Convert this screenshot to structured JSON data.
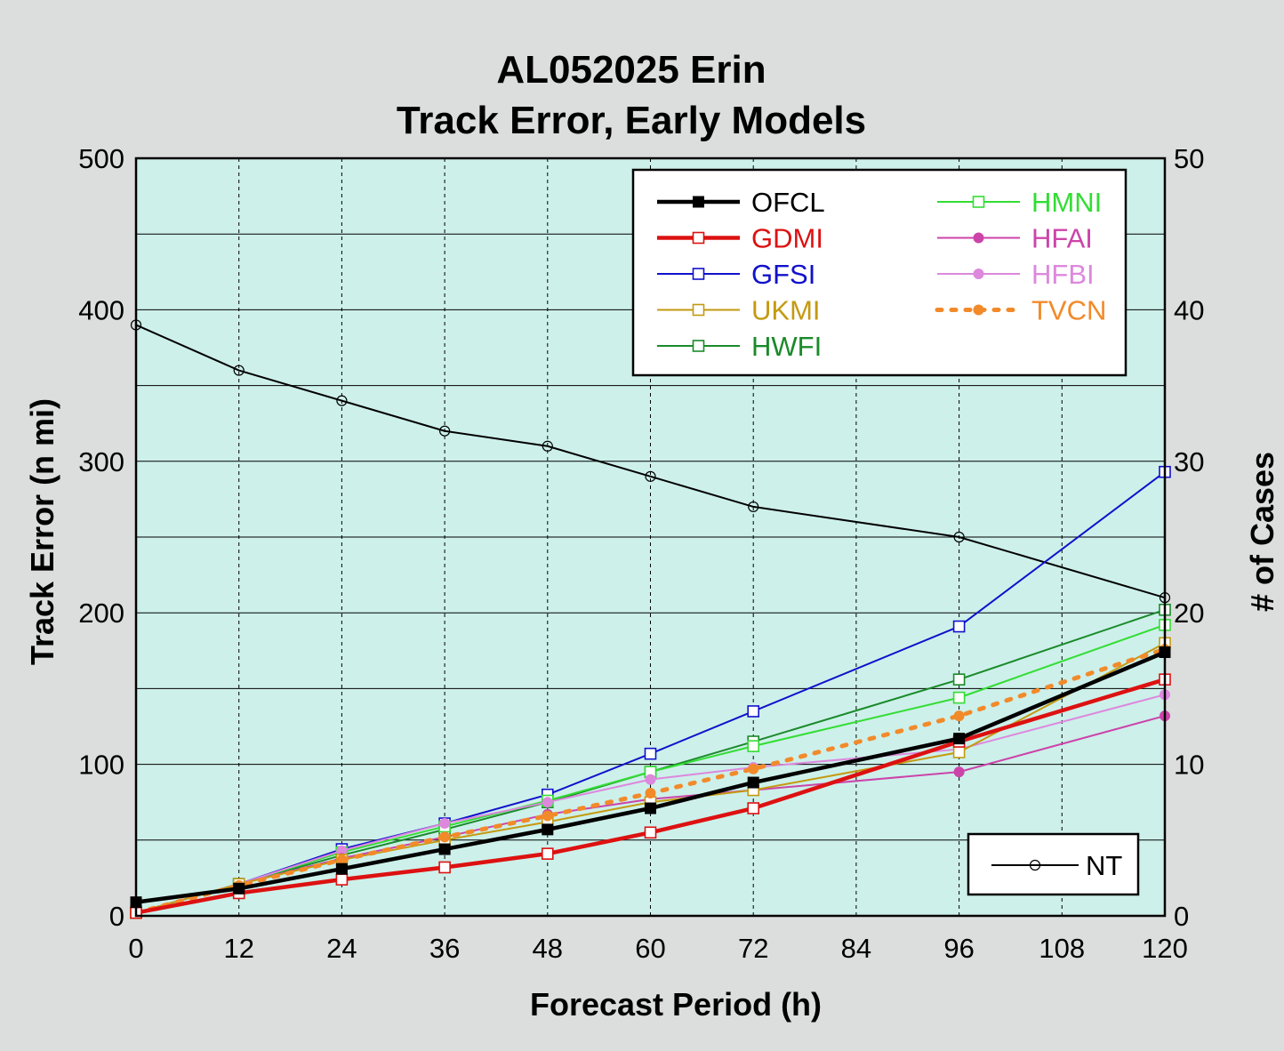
{
  "chart_data": {
    "type": "line",
    "title_line1": "AL052025 Erin",
    "title_line2": "Track Error, Early Models",
    "xlabel": "Forecast Period (h)",
    "ylabel": "Track Error (n mi)",
    "y2label": "# of Cases",
    "xlim": [
      0,
      120
    ],
    "ylim": [
      0,
      500
    ],
    "y2lim": [
      0,
      50
    ],
    "xticks": [
      "0",
      "12",
      "24",
      "36",
      "48",
      "60",
      "72",
      "84",
      "96",
      "108",
      "120"
    ],
    "yticks": [
      "0",
      "100",
      "200",
      "300",
      "400",
      "500"
    ],
    "y2ticks": [
      "0",
      "10",
      "20",
      "30",
      "40",
      "50"
    ],
    "grid": true,
    "legend_position": "top-right",
    "x": [
      0,
      12,
      24,
      36,
      48,
      60,
      72,
      96,
      120
    ],
    "series": [
      {
        "name": "OFCL",
        "color": "#000000",
        "marker": "filled-square",
        "style": "solid-thick",
        "values": [
          9,
          18,
          31,
          44,
          57,
          71,
          88,
          117,
          174
        ]
      },
      {
        "name": "GDMI",
        "color": "#dd1111",
        "marker": "open-square",
        "style": "solid-thick",
        "values": [
          2,
          15,
          24,
          32,
          41,
          55,
          71,
          115,
          156
        ]
      },
      {
        "name": "GFSI",
        "color": "#1111cc",
        "marker": "open-square",
        "style": "solid",
        "values": [
          2,
          21,
          44,
          61,
          80,
          107,
          135,
          191,
          293
        ]
      },
      {
        "name": "UKMI",
        "color": "#c49a10",
        "marker": "open-square",
        "style": "solid",
        "values": [
          2,
          21,
          37,
          50,
          62,
          75,
          83,
          108,
          180
        ]
      },
      {
        "name": "HWFI",
        "color": "#1a8a2a",
        "marker": "open-square",
        "style": "solid",
        "values": [
          2,
          21,
          40,
          57,
          75,
          95,
          115,
          156,
          202
        ]
      },
      {
        "name": "HMNI",
        "color": "#33dd33",
        "marker": "open-square",
        "style": "solid",
        "values": [
          2,
          21,
          42,
          59,
          76,
          95,
          112,
          144,
          192
        ]
      },
      {
        "name": "HFAI",
        "color": "#cc44aa",
        "marker": "filled-circle",
        "style": "solid",
        "values": [
          2,
          21,
          38,
          52,
          67,
          77,
          83,
          95,
          132
        ]
      },
      {
        "name": "HFBI",
        "color": "#dd88dd",
        "marker": "filled-circle",
        "style": "solid",
        "values": [
          2,
          21,
          43,
          61,
          75,
          90,
          98,
          110,
          146
        ]
      },
      {
        "name": "TVCN",
        "color": "#f28a2a",
        "marker": "filled-circle",
        "style": "dotted",
        "values": [
          2,
          20,
          37,
          52,
          66,
          81,
          97,
          132,
          176
        ]
      }
    ],
    "cases": {
      "name": "NT",
      "color": "#000000",
      "marker": "open-circle",
      "axis": "right",
      "values": [
        39,
        36,
        34,
        32,
        31,
        29,
        27,
        25,
        21
      ]
    },
    "legend": {
      "col1": [
        "OFCL",
        "GDMI",
        "GFSI",
        "UKMI",
        "HWFI"
      ],
      "col2": [
        "HMNI",
        "HFAI",
        "HFBI",
        "TVCN"
      ]
    },
    "colors": {
      "plot_background": "#cdf0ea",
      "page_background": "#dcdedd"
    }
  }
}
